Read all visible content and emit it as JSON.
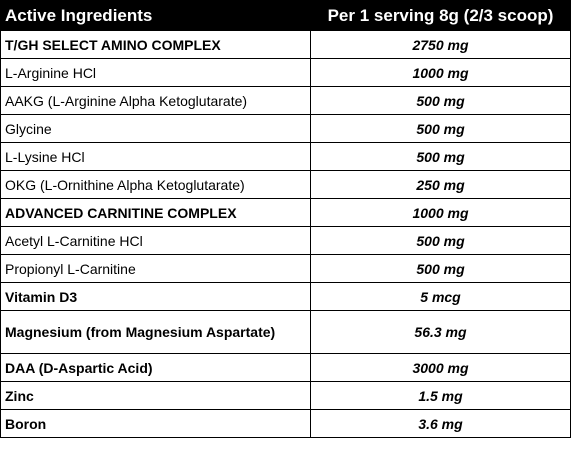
{
  "table": {
    "header": [
      "Active Ingredients",
      "Per 1 serving 8g (2/3 scoop)"
    ],
    "rows": [
      {
        "ingredient": "T/GH SELECT AMINO COMPLEX",
        "amount": "2750 mg",
        "bold": true
      },
      {
        "ingredient": "L-Arginine HCl",
        "amount": "1000 mg",
        "bold": false
      },
      {
        "ingredient": "AAKG (L-Arginine Alpha Ketoglutarate)",
        "amount": "500 mg",
        "bold": false
      },
      {
        "ingredient": "Glycine",
        "amount": "500 mg",
        "bold": false
      },
      {
        "ingredient": "L-Lysine HCl",
        "amount": "500 mg",
        "bold": false
      },
      {
        "ingredient": "OKG (L-Ornithine Alpha Ketoglutarate)",
        "amount": "250 mg",
        "bold": false
      },
      {
        "ingredient": "ADVANCED CARNITINE COMPLEX",
        "amount": "1000 mg",
        "bold": true
      },
      {
        "ingredient": "Acetyl L-Carnitine HCl",
        "amount": "500 mg",
        "bold": false
      },
      {
        "ingredient": "Propionyl L-Carnitine",
        "amount": "500 mg",
        "bold": false
      },
      {
        "ingredient": "Vitamin D3",
        "amount": "5 mcg",
        "bold": true
      },
      {
        "ingredient": "Magnesium (from Magnesium Aspartate)",
        "amount": "56.3 mg",
        "bold": true
      },
      {
        "ingredient": "DAA (D-Aspartic Acid)",
        "amount": "3000 mg",
        "bold": true
      },
      {
        "ingredient": "Zinc",
        "amount": "1.5 mg",
        "bold": true
      },
      {
        "ingredient": "Boron",
        "amount": "3.6 mg",
        "bold": true
      }
    ]
  }
}
